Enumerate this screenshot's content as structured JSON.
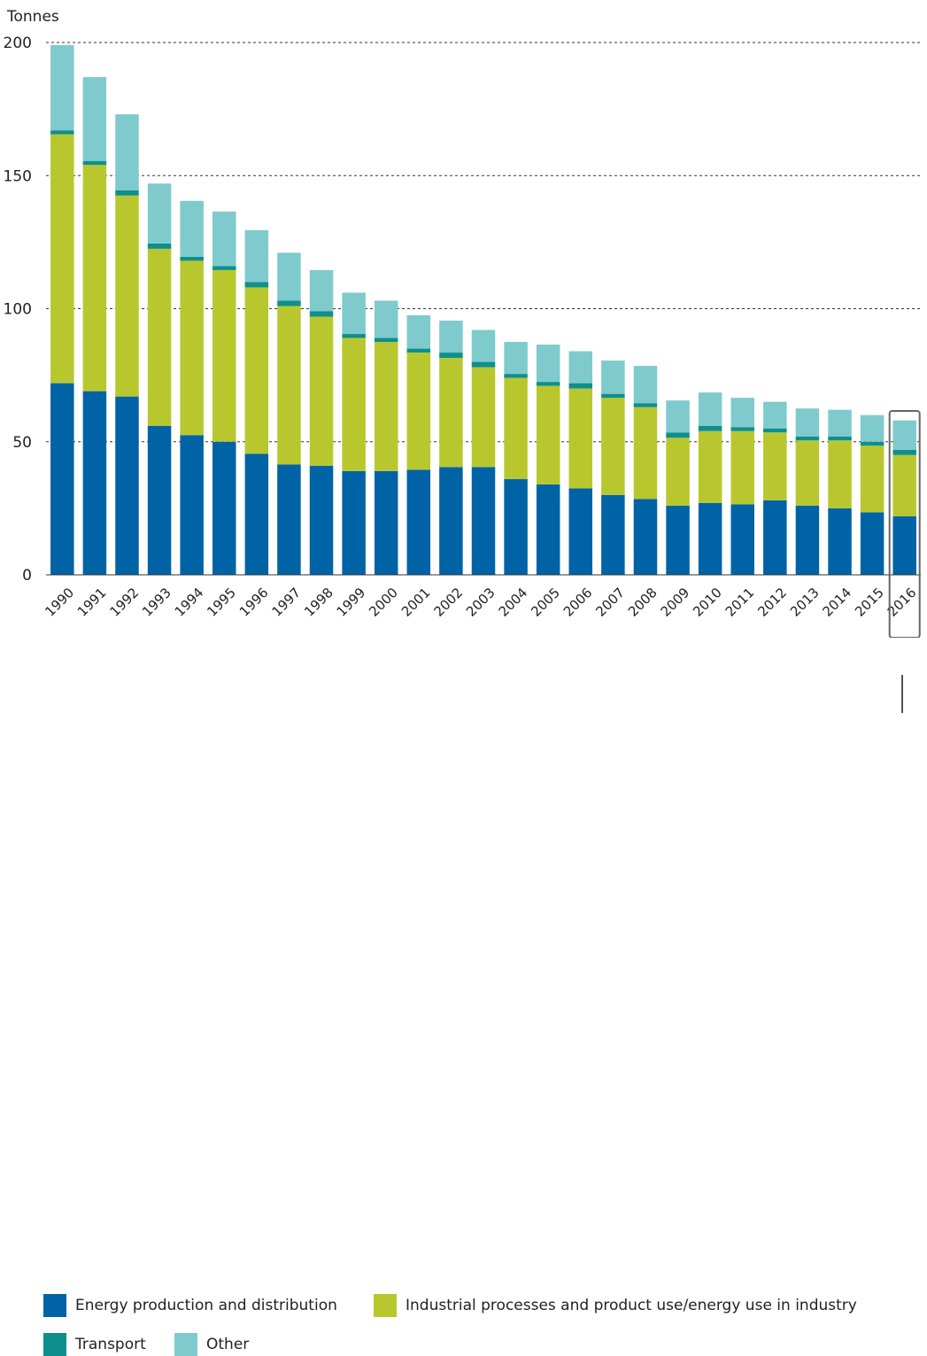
{
  "chart_data": {
    "type": "bar",
    "stacked": true,
    "ylabel": "Tonnes",
    "xlabel": "",
    "title": "",
    "ylim": [
      0,
      200
    ],
    "yticks": [
      0,
      50,
      100,
      150,
      200
    ],
    "grid": "horizontal dashed",
    "legend_position": "bottom",
    "highlighted_category": "2016",
    "categories": [
      "1990",
      "1991",
      "1992",
      "1993",
      "1994",
      "1995",
      "1996",
      "1997",
      "1998",
      "1999",
      "2000",
      "2001",
      "2002",
      "2003",
      "2004",
      "2005",
      "2006",
      "2007",
      "2008",
      "2009",
      "2010",
      "2011",
      "2012",
      "2013",
      "2014",
      "2015",
      "2016"
    ],
    "series": [
      {
        "name": "Energy production and distribution",
        "color": "#0063a6",
        "values": [
          72,
          69,
          67,
          56,
          52.5,
          50,
          45.5,
          41.5,
          41,
          39,
          39,
          39.5,
          40.5,
          40.5,
          36,
          34,
          32.5,
          30,
          28.5,
          26,
          27,
          26.5,
          28,
          26,
          25,
          23.5,
          22
        ]
      },
      {
        "name": "Industrial processes and product use/energy use in industry",
        "color": "#b9c72e",
        "values": [
          93.5,
          85,
          75.5,
          66.5,
          65.5,
          64.5,
          62.5,
          59.5,
          56,
          50,
          48.5,
          44,
          41,
          37.5,
          38,
          37,
          37.5,
          36.5,
          34.5,
          25.5,
          27,
          27.5,
          25.5,
          24.5,
          25.5,
          25,
          23
        ]
      },
      {
        "name": "Transport",
        "color": "#0f8f8c",
        "values": [
          1.5,
          1.5,
          2,
          2,
          1.5,
          1.5,
          2,
          2,
          2,
          1.5,
          1.5,
          1.5,
          2,
          2,
          1.5,
          1.5,
          2,
          1.5,
          1.5,
          2,
          2,
          1.5,
          1.5,
          1.5,
          1.5,
          1.5,
          2
        ]
      },
      {
        "name": "Other",
        "color": "#7fcacd",
        "values": [
          32,
          31.5,
          28.5,
          22.5,
          21,
          20.5,
          19.5,
          18,
          15.5,
          15.5,
          14,
          12.5,
          12,
          12,
          12,
          14,
          12,
          12.5,
          14,
          12,
          12.5,
          11,
          10,
          10.5,
          10,
          10,
          11
        ]
      }
    ]
  }
}
